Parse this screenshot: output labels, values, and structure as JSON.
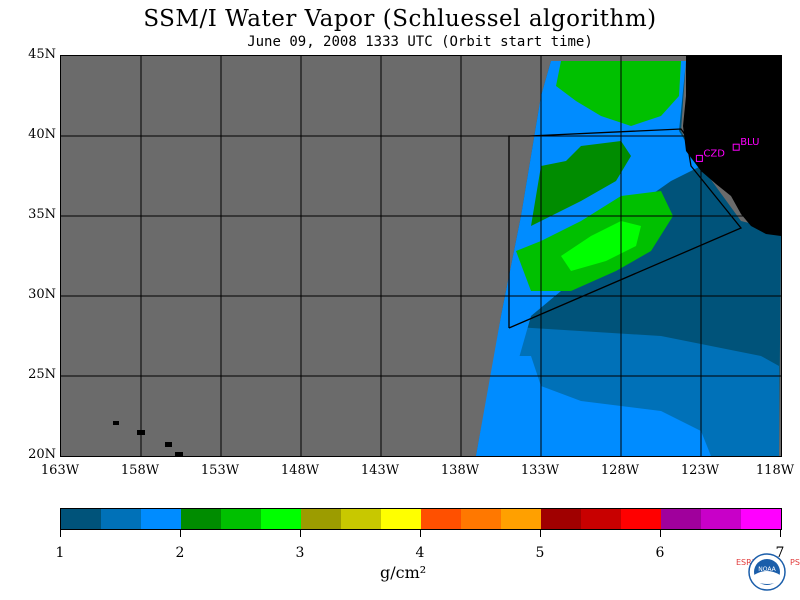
{
  "title": "SSM/I Water Vapor (Schluessel algorithm)",
  "subtitle": "June 09, 2008  1333 UTC  (Orbit start time)",
  "lat_labels": [
    "45N",
    "40N",
    "35N",
    "30N",
    "25N",
    "20N"
  ],
  "lon_labels": [
    "163W",
    "158W",
    "153W",
    "148W",
    "143W",
    "138W",
    "133W",
    "128W",
    "123W",
    "118W"
  ],
  "stations": [
    {
      "label": "CZD",
      "lon": -123.1,
      "lat": 38.6
    },
    {
      "label": "BLU",
      "lon": -120.8,
      "lat": 39.3
    }
  ],
  "colorbar": {
    "ticks": [
      "1",
      "2",
      "3",
      "4",
      "5",
      "6",
      "7"
    ],
    "units": "g/cm²",
    "colors": [
      "#00537a",
      "#0071b8",
      "#008cff",
      "#008c00",
      "#00c000",
      "#00ff00",
      "#9c9c00",
      "#c8c800",
      "#ffff00",
      "#ff5000",
      "#ff7800",
      "#ffa000",
      "#a00000",
      "#c80000",
      "#ff0000",
      "#a0009c",
      "#c800c8",
      "#ff00ff"
    ]
  },
  "logo": {
    "left_text": "ESRL",
    "right_text": "PSD",
    "center_text": "NOAA"
  },
  "colors": {
    "land": "#000000",
    "no_data": "#6b6b6b",
    "station": "#ff00ff"
  }
}
